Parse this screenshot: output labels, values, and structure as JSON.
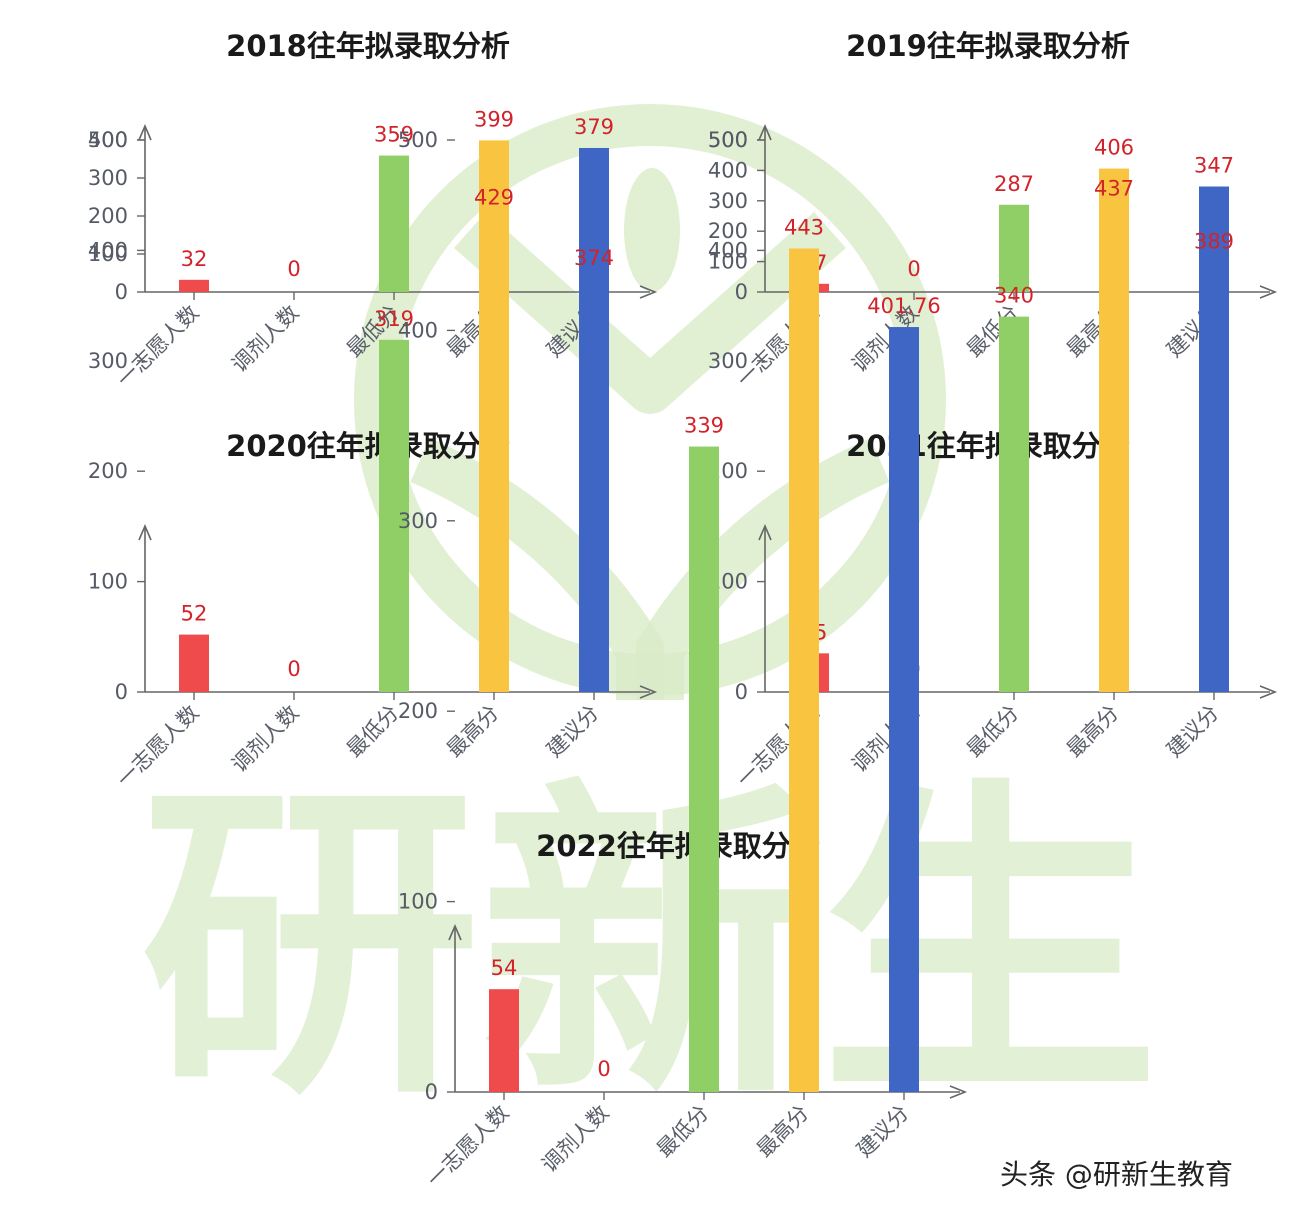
{
  "watermark": {
    "text": "研新生",
    "color": "#d9ebc8"
  },
  "credit": "头条 @研新生教育",
  "colors": {
    "一志愿人数": "#ef4b4c",
    "调剂人数": "#ef4b4c",
    "最低分": "#8fcf66",
    "最高分": "#f9c440",
    "建议分": "#3f66c4",
    "value_label": "#d2232a",
    "axis": "#666666"
  },
  "chart_data": [
    {
      "type": "bar",
      "title": "2018往年拟录取分析",
      "categories": [
        "一志愿人数",
        "调剂人数",
        "最低分",
        "最高分",
        "建议分"
      ],
      "values": [
        32,
        0,
        359,
        399,
        379
      ],
      "value_labels": [
        "32",
        "0",
        "359",
        "399",
        "379"
      ],
      "yticks": [
        0,
        100,
        200,
        300,
        400
      ],
      "ylim": [
        0,
        400
      ],
      "xlabel": "",
      "ylabel": "",
      "grid": false,
      "legend": false
    },
    {
      "type": "bar",
      "title": "2019往年拟录取分析",
      "categories": [
        "一志愿人数",
        "调剂人数",
        "最低分",
        "最高分",
        "建议分"
      ],
      "values": [
        27,
        0,
        287,
        406,
        347
      ],
      "value_labels": [
        "27",
        "0",
        "287",
        "406",
        "347"
      ],
      "yticks": [
        0,
        100,
        200,
        300,
        400,
        500
      ],
      "ylim": [
        0,
        500
      ],
      "xlabel": "",
      "ylabel": "",
      "grid": false,
      "legend": false
    },
    {
      "type": "bar",
      "title": "2020往年拟录取分析",
      "categories": [
        "一志愿人数",
        "调剂人数",
        "最低分",
        "最高分",
        "建议分"
      ],
      "values": [
        52,
        0,
        319,
        429,
        374
      ],
      "value_labels": [
        "52",
        "0",
        "319",
        "429",
        "374"
      ],
      "yticks": [
        0,
        100,
        200,
        300,
        400,
        500
      ],
      "ylim": [
        0,
        500
      ],
      "xlabel": "",
      "ylabel": "",
      "grid": false,
      "legend": false
    },
    {
      "type": "bar",
      "title": "2021往年拟录取分析",
      "categories": [
        "一志愿人数",
        "调剂人数",
        "最低分",
        "最高分",
        "建议分"
      ],
      "values": [
        35,
        0,
        340,
        437,
        389
      ],
      "value_labels": [
        "35",
        "0",
        "340",
        "437",
        "389"
      ],
      "yticks": [
        0,
        100,
        200,
        300,
        400,
        500
      ],
      "ylim": [
        0,
        500
      ],
      "xlabel": "",
      "ylabel": "",
      "grid": false,
      "legend": false
    },
    {
      "type": "bar",
      "title": "2022往年拟录取分析",
      "categories": [
        "一志愿人数",
        "调剂人数",
        "最低分",
        "最高分",
        "建议分"
      ],
      "values": [
        54,
        0,
        339,
        443,
        401.76
      ],
      "value_labels": [
        "54",
        "0",
        "339",
        "443",
        "401.76"
      ],
      "yticks": [
        0,
        100,
        200,
        300,
        400,
        500
      ],
      "ylim": [
        0,
        500
      ],
      "xlabel": "",
      "ylabel": "",
      "grid": false,
      "legend": false
    }
  ]
}
